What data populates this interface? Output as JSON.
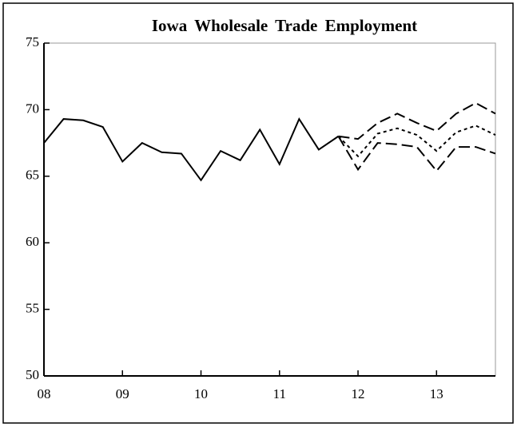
{
  "chart_data": {
    "type": "line",
    "title": "Iowa Wholesale Trade Employment",
    "x": [
      8,
      8.25,
      8.5,
      8.75,
      9,
      9.25,
      9.5,
      9.75,
      10,
      10.25,
      10.5,
      10.75,
      11,
      11.25,
      11.5,
      11.75,
      12,
      12.25,
      12.5,
      12.75,
      13,
      13.25,
      13.5,
      13.75
    ],
    "series": [
      {
        "color": "#000000",
        "line_style": "solid",
        "values": [
          67.5,
          69.3,
          69.2,
          68.7,
          66.1,
          67.5,
          66.8,
          66.7,
          64.7,
          66.9,
          66.2,
          68.5,
          65.9,
          69.3,
          67.0,
          68.0,
          null,
          null,
          null,
          null,
          null,
          null,
          null,
          null
        ]
      },
      {
        "color": "#000000",
        "line_style": "dashed",
        "values": [
          null,
          null,
          null,
          null,
          null,
          null,
          null,
          null,
          null,
          null,
          null,
          null,
          null,
          null,
          null,
          68.0,
          67.8,
          69.0,
          69.7,
          69.0,
          68.4,
          69.7,
          70.5,
          69.7
        ]
      },
      {
        "color": "#000000",
        "line_style": "dotted",
        "values": [
          null,
          null,
          null,
          null,
          null,
          null,
          null,
          null,
          null,
          null,
          null,
          null,
          null,
          null,
          null,
          68.0,
          66.5,
          68.2,
          68.6,
          68.1,
          66.9,
          68.3,
          68.8,
          68.1
        ]
      },
      {
        "color": "#000000",
        "line_style": "dashed",
        "values": [
          null,
          null,
          null,
          null,
          null,
          null,
          null,
          null,
          null,
          null,
          null,
          null,
          null,
          null,
          null,
          68.0,
          65.5,
          67.5,
          67.4,
          67.2,
          65.4,
          67.2,
          67.2,
          66.7
        ]
      }
    ],
    "xlim": [
      8,
      13.75
    ],
    "xticks": [
      {
        "value": 8,
        "label": "08"
      },
      {
        "value": 9,
        "label": "09"
      },
      {
        "value": 10,
        "label": "10"
      },
      {
        "value": 11,
        "label": "11"
      },
      {
        "value": 12,
        "label": "12"
      },
      {
        "value": 13,
        "label": "13"
      }
    ],
    "ylim": [
      50,
      75
    ],
    "yticks": [
      50,
      55,
      60,
      65,
      70,
      75
    ],
    "grid": false
  }
}
